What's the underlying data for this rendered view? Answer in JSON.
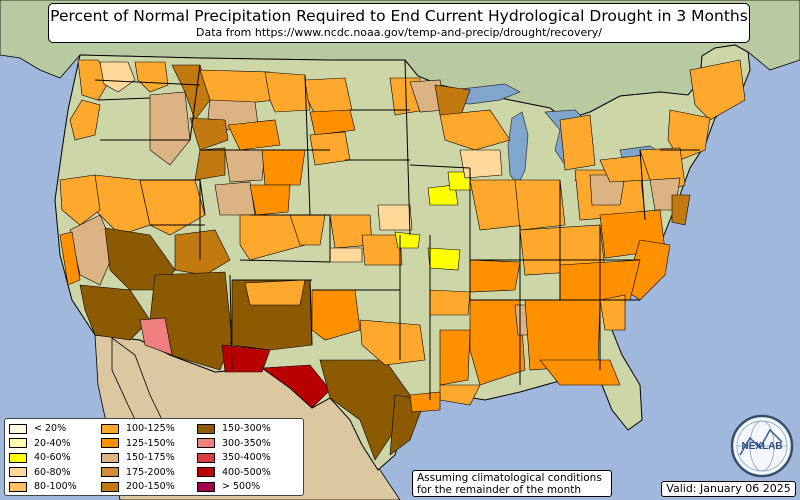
{
  "title": "Percent of Normal Precipitation Required to End Current Hydrological Drought in 3 Months",
  "subtitle": "Data from https://www.ncdc.noaa.gov/temp-and-precip/drought/recovery/",
  "legend": [
    {
      "label": "< 20%",
      "color": "#ffffe0"
    },
    {
      "label": "20-40%",
      "color": "#ffffb0"
    },
    {
      "label": "40-60%",
      "color": "#ffff00"
    },
    {
      "label": "60-80%",
      "color": "#ffd89a"
    },
    {
      "label": "80-100%",
      "color": "#ffc060"
    },
    {
      "label": "100-125%",
      "color": "#ffa82e"
    },
    {
      "label": "125-150%",
      "color": "#ff9000"
    },
    {
      "label": "150-175%",
      "color": "#dcb484"
    },
    {
      "label": "175-200%",
      "color": "#d08c3a"
    },
    {
      "label": "200-150%",
      "color": "#c27a10"
    },
    {
      "label": "150-300%",
      "color": "#8c5a00"
    },
    {
      "label": "300-350%",
      "color": "#f08080"
    },
    {
      "label": "350-400%",
      "color": "#d84040"
    },
    {
      "label": "400-500%",
      "color": "#b80000"
    },
    {
      "label": "> 500%",
      "color": "#a0004c"
    }
  ],
  "note": {
    "line1": "Assuming climatological conditions",
    "line2": "for the remainder of the month"
  },
  "valid": "Valid: January 06 2025",
  "logo": {
    "text": "NEXLAB",
    "icon": "globe-logo-icon"
  },
  "colors": {
    "ocean": "#9fb8dc",
    "land": "#cdd6a6",
    "mexico": "#dcc8a0",
    "canada": "#b8c8a0",
    "lake": "#7fa6cc"
  }
}
